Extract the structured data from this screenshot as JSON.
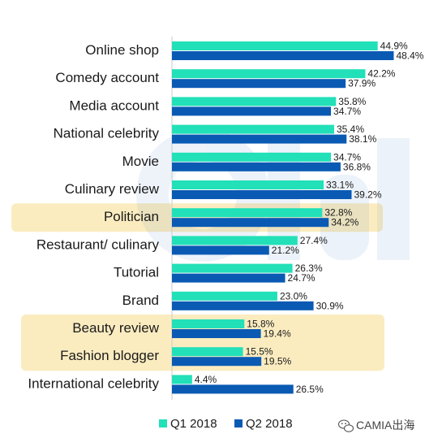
{
  "chart_data": {
    "type": "bar",
    "orientation": "horizontal",
    "categories": [
      "Online shop",
      "Comedy account",
      "Media account",
      "National celebrity",
      "Movie",
      "Culinary review",
      "Politician",
      "Restaurant/ culinary",
      "Tutorial",
      "Brand",
      "Beauty review",
      "Fashion blogger",
      "International celebrity"
    ],
    "series": [
      {
        "name": "Q1 2018",
        "color": "#22e0b8",
        "values": [
          44.9,
          42.2,
          35.8,
          35.4,
          34.7,
          33.1,
          32.8,
          27.4,
          26.3,
          23.0,
          15.8,
          15.5,
          4.4
        ],
        "labels": [
          "44.9%",
          "42.2%",
          "35.8%",
          "35.4%",
          "34.7%",
          "33.1%",
          "32.8%",
          "27.4%",
          "26.3%",
          "23.0%",
          "15.8%",
          "15.5%",
          "4.4%"
        ]
      },
      {
        "name": "Q2 2018",
        "color": "#0a5ab4",
        "values": [
          48.4,
          37.9,
          34.7,
          38.1,
          36.8,
          39.2,
          34.2,
          21.2,
          24.7,
          30.9,
          19.4,
          19.5,
          26.5
        ],
        "labels": [
          "48.4%",
          "37.9%",
          "34.7%",
          "38.1%",
          "36.8%",
          "39.2%",
          "34.2%",
          "21.2%",
          "24.7%",
          "30.9%",
          "19.4%",
          "19.5%",
          "26.5%"
        ]
      }
    ],
    "highlighted_categories": [
      "Politician",
      "Beauty review",
      "Fashion blogger"
    ],
    "highlight_color": "#fbecc0",
    "xlim": [
      0,
      60
    ],
    "grid": false,
    "legend_position": "bottom"
  },
  "watermark": {
    "text": "CAMIA出海",
    "icon": "wechat-chat-icon"
  }
}
